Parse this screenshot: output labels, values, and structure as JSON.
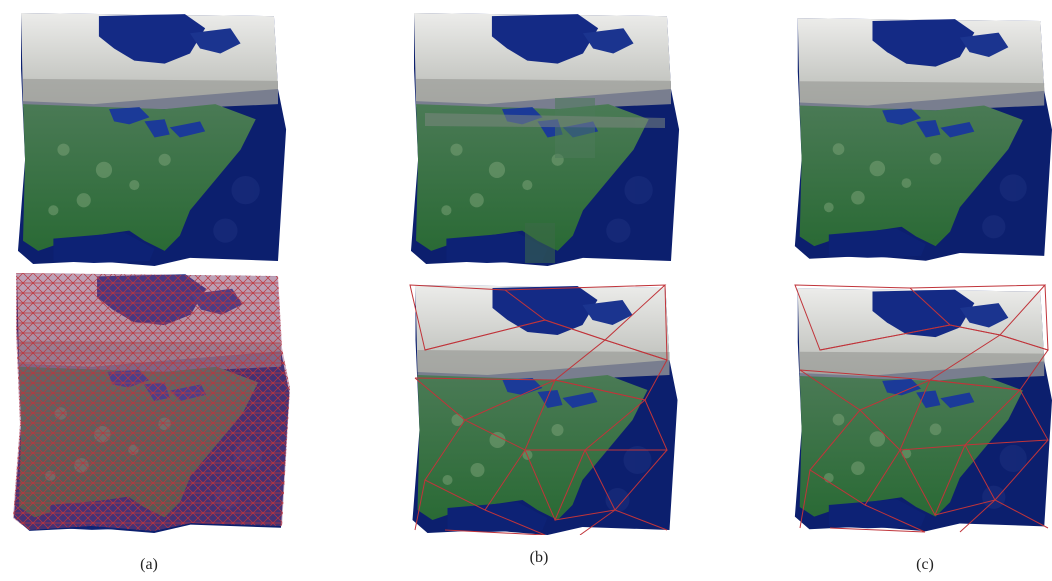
{
  "captions": {
    "a": "(a)",
    "b": "(b)",
    "c": "(c)"
  },
  "colors": {
    "ocean": "#0c1f6e",
    "ocean_light": "#1f3a8a",
    "land": "#2f6e3a",
    "land_light": "#5a8f5a",
    "snow": "#e6e6e2",
    "cloud_gray": "#a9aaa8",
    "mesh": "#c0343a",
    "dense_mesh_fill": "#8a5a7a"
  },
  "panels": [
    {
      "id": "a-top",
      "kind": "textured-surface"
    },
    {
      "id": "b-top",
      "kind": "textured-surface-distorted"
    },
    {
      "id": "c-top",
      "kind": "textured-surface"
    },
    {
      "id": "a-bottom",
      "kind": "dense-mesh-overlay"
    },
    {
      "id": "b-bottom",
      "kind": "sparse-mesh-overlay"
    },
    {
      "id": "c-bottom",
      "kind": "sparse-mesh-overlay"
    }
  ]
}
